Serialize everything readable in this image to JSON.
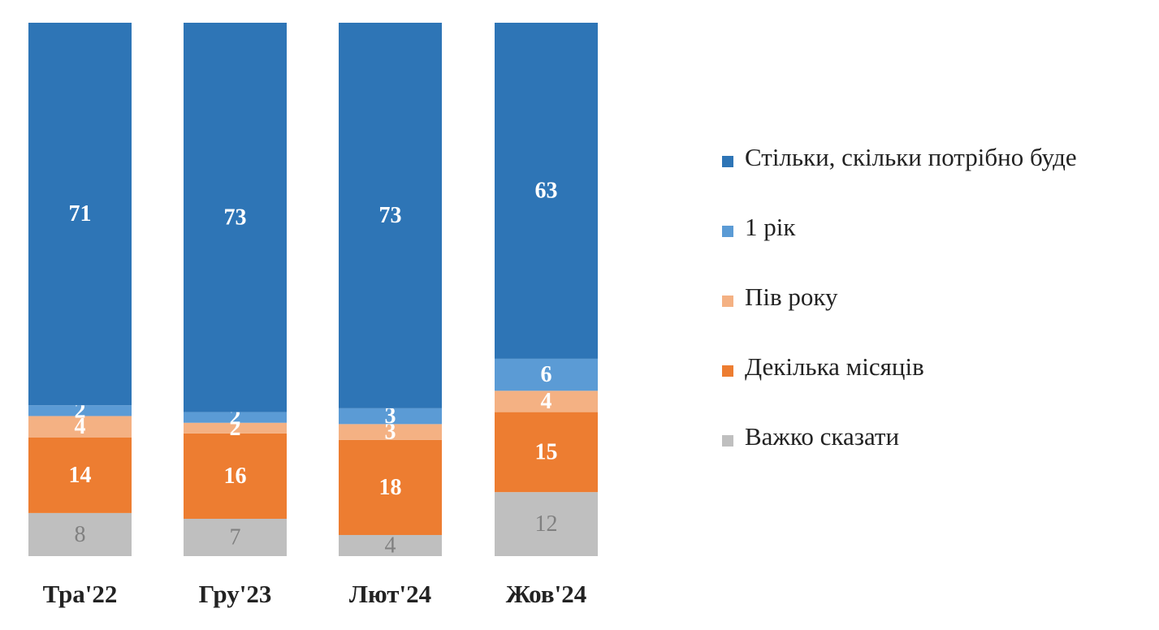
{
  "chart_data": {
    "type": "bar",
    "stacked": true,
    "normalized_percent": true,
    "categories": [
      "Тра'22",
      "Гру'23",
      "Лют'24",
      "Жов'24"
    ],
    "series": [
      {
        "name": "Важко сказати",
        "color": "#bfbfbf",
        "label_color": "#808080",
        "label_bold": false,
        "values": [
          8,
          7,
          4,
          12
        ]
      },
      {
        "name": "Декілька місяців",
        "color": "#ed7d31",
        "label_color": "#ffffff",
        "label_bold": true,
        "values": [
          14,
          16,
          18,
          15
        ]
      },
      {
        "name": "Пів року",
        "color": "#f4b183",
        "label_color": "#ffffff",
        "label_bold": true,
        "values": [
          4,
          2,
          3,
          4
        ]
      },
      {
        "name": "1 рік",
        "color": "#5b9bd5",
        "label_color": "#ffffff",
        "label_bold": true,
        "values": [
          2,
          2,
          3,
          6
        ]
      },
      {
        "name": "Стільки, скільки потрібно буде",
        "color": "#2e75b6",
        "label_color": "#ffffff",
        "label_bold": true,
        "values": [
          71,
          73,
          73,
          63
        ]
      }
    ],
    "legend_order": [
      "Стільки, скільки потрібно буде",
      "1 рік",
      "Пів року",
      "Декілька місяців",
      "Важко сказати"
    ],
    "legend_position": "right",
    "grid": false,
    "title": "",
    "xlabel": "",
    "ylabel": ""
  }
}
